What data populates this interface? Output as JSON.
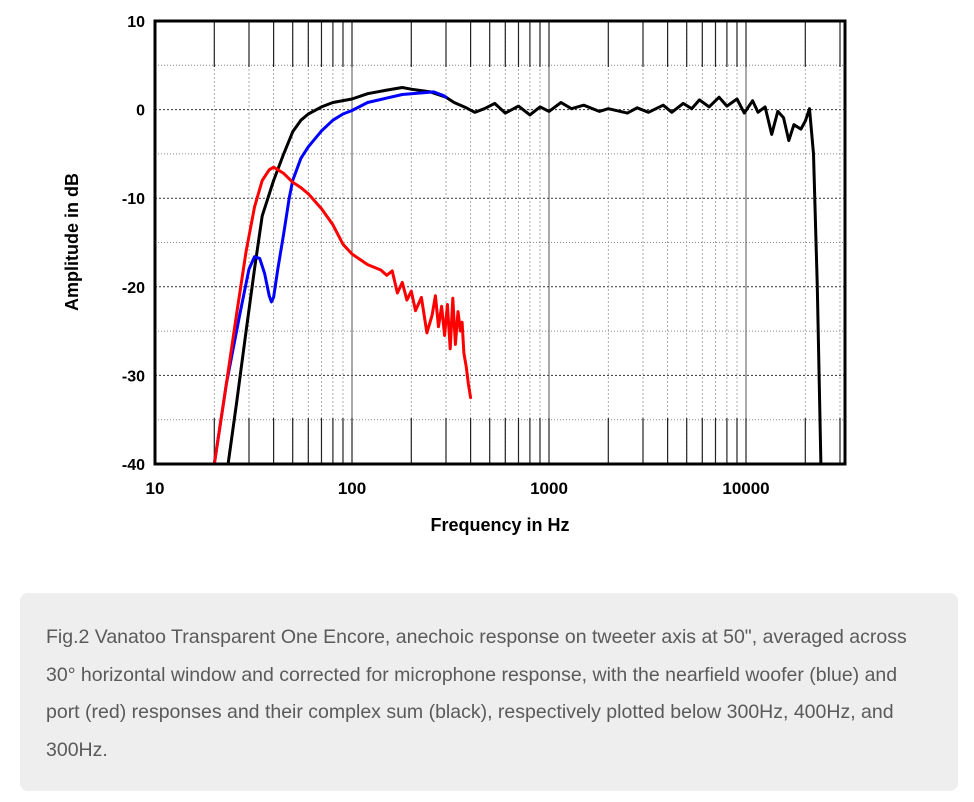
{
  "chart_data": {
    "type": "line",
    "xlabel": "Frequency in Hz",
    "ylabel": "Amplitude in dB",
    "x_scale": "log",
    "xlim": [
      10,
      25000
    ],
    "ylim": [
      -40,
      10
    ],
    "x_ticks": [
      {
        "value": 10,
        "label": "10"
      },
      {
        "value": 100,
        "label": "100"
      },
      {
        "value": 1000,
        "label": "1000"
      },
      {
        "value": 10000,
        "label": "10000"
      }
    ],
    "y_ticks": [
      {
        "value": 10,
        "label": "10"
      },
      {
        "value": 0,
        "label": "0"
      },
      {
        "value": -10,
        "label": "-10"
      },
      {
        "value": -20,
        "label": "-20"
      },
      {
        "value": -30,
        "label": "-30"
      },
      {
        "value": -40,
        "label": "-40"
      }
    ],
    "grid": true,
    "series": [
      {
        "key": "black",
        "color": "#000000",
        "points": [
          [
            23.5,
            -40
          ],
          [
            26,
            -33
          ],
          [
            29,
            -25
          ],
          [
            32,
            -18
          ],
          [
            35,
            -12
          ],
          [
            40,
            -8
          ],
          [
            45,
            -5
          ],
          [
            50,
            -2.5
          ],
          [
            55,
            -1.2
          ],
          [
            60,
            -0.5
          ],
          [
            70,
            0.3
          ],
          [
            80,
            0.8
          ],
          [
            100,
            1.2
          ],
          [
            120,
            1.8
          ],
          [
            150,
            2.2
          ],
          [
            180,
            2.5
          ],
          [
            200,
            2.3
          ],
          [
            250,
            2.0
          ],
          [
            300,
            1.4
          ],
          [
            330,
            0.8
          ],
          [
            380,
            0.2
          ],
          [
            420,
            -0.3
          ],
          [
            470,
            0.1
          ],
          [
            530,
            0.7
          ],
          [
            600,
            -0.4
          ],
          [
            700,
            0.4
          ],
          [
            800,
            -0.6
          ],
          [
            900,
            0.3
          ],
          [
            1000,
            -0.2
          ],
          [
            1150,
            0.8
          ],
          [
            1300,
            0.1
          ],
          [
            1500,
            0.5
          ],
          [
            1800,
            -0.2
          ],
          [
            2000,
            0.1
          ],
          [
            2500,
            -0.4
          ],
          [
            2800,
            0.2
          ],
          [
            3200,
            -0.3
          ],
          [
            3800,
            0.5
          ],
          [
            4200,
            -0.3
          ],
          [
            4800,
            0.7
          ],
          [
            5300,
            0.1
          ],
          [
            5800,
            1.1
          ],
          [
            6500,
            0.3
          ],
          [
            7300,
            1.4
          ],
          [
            8000,
            0.4
          ],
          [
            9000,
            1.2
          ],
          [
            9800,
            -0.4
          ],
          [
            10800,
            1.0
          ],
          [
            11500,
            -0.3
          ],
          [
            12500,
            0.3
          ],
          [
            13500,
            -2.8
          ],
          [
            14500,
            -0.2
          ],
          [
            15500,
            -0.9
          ],
          [
            16500,
            -3.5
          ],
          [
            17500,
            -1.7
          ],
          [
            19000,
            -2.2
          ],
          [
            20000,
            -1.3
          ],
          [
            21000,
            0.1
          ],
          [
            22000,
            -5
          ],
          [
            23000,
            -20
          ],
          [
            24000,
            -40
          ]
        ]
      },
      {
        "key": "blue",
        "color": "#0000ff",
        "points": [
          [
            20,
            -40
          ],
          [
            23,
            -31
          ],
          [
            27,
            -23
          ],
          [
            30,
            -18
          ],
          [
            32,
            -16.6
          ],
          [
            34,
            -16.8
          ],
          [
            36,
            -18.5
          ],
          [
            38,
            -21
          ],
          [
            39,
            -21.7
          ],
          [
            40,
            -21.2
          ],
          [
            42,
            -18
          ],
          [
            45,
            -14
          ],
          [
            48,
            -10
          ],
          [
            50,
            -8
          ],
          [
            55,
            -5.5
          ],
          [
            60,
            -4.2
          ],
          [
            70,
            -2.4
          ],
          [
            80,
            -1.2
          ],
          [
            90,
            -0.5
          ],
          [
            100,
            -0.1
          ],
          [
            120,
            0.8
          ],
          [
            150,
            1.3
          ],
          [
            180,
            1.7
          ],
          [
            200,
            1.8
          ],
          [
            230,
            1.9
          ],
          [
            260,
            2.0
          ],
          [
            290,
            1.6
          ],
          [
            300,
            1.4
          ]
        ]
      },
      {
        "key": "red",
        "color": "#ff0000",
        "points": [
          [
            20,
            -40
          ],
          [
            23,
            -31
          ],
          [
            26,
            -23
          ],
          [
            29,
            -16
          ],
          [
            32,
            -11
          ],
          [
            35,
            -8
          ],
          [
            38,
            -6.8
          ],
          [
            40,
            -6.5
          ],
          [
            45,
            -7.2
          ],
          [
            50,
            -8.2
          ],
          [
            55,
            -8.8
          ],
          [
            60,
            -9.5
          ],
          [
            70,
            -11.2
          ],
          [
            80,
            -13
          ],
          [
            90,
            -15.2
          ],
          [
            100,
            -16.3
          ],
          [
            120,
            -17.5
          ],
          [
            140,
            -18.1
          ],
          [
            150,
            -18.7
          ],
          [
            160,
            -18.2
          ],
          [
            170,
            -20.7
          ],
          [
            180,
            -19.5
          ],
          [
            190,
            -21.5
          ],
          [
            200,
            -20.5
          ],
          [
            210,
            -22.7
          ],
          [
            225,
            -21.2
          ],
          [
            240,
            -25.2
          ],
          [
            255,
            -23.2
          ],
          [
            265,
            -21.0
          ],
          [
            275,
            -24.5
          ],
          [
            285,
            -22.2
          ],
          [
            295,
            -25.5
          ],
          [
            305,
            -22.0
          ],
          [
            315,
            -27.0
          ],
          [
            325,
            -21.3
          ],
          [
            335,
            -26.5
          ],
          [
            345,
            -22.8
          ],
          [
            355,
            -25.0
          ],
          [
            362,
            -24.0
          ],
          [
            370,
            -27.5
          ],
          [
            380,
            -29.0
          ],
          [
            390,
            -31.0
          ],
          [
            400,
            -32.5
          ]
        ]
      }
    ]
  },
  "caption": "Fig.2 Vanatoo Transparent One Encore, anechoic response on tweeter axis at 50\", averaged across 30° horizontal window and corrected for microphone response, with the nearfield woofer (blue) and port (red) responses and their complex sum (black), respectively plotted below 300Hz, 400Hz, and 300Hz."
}
